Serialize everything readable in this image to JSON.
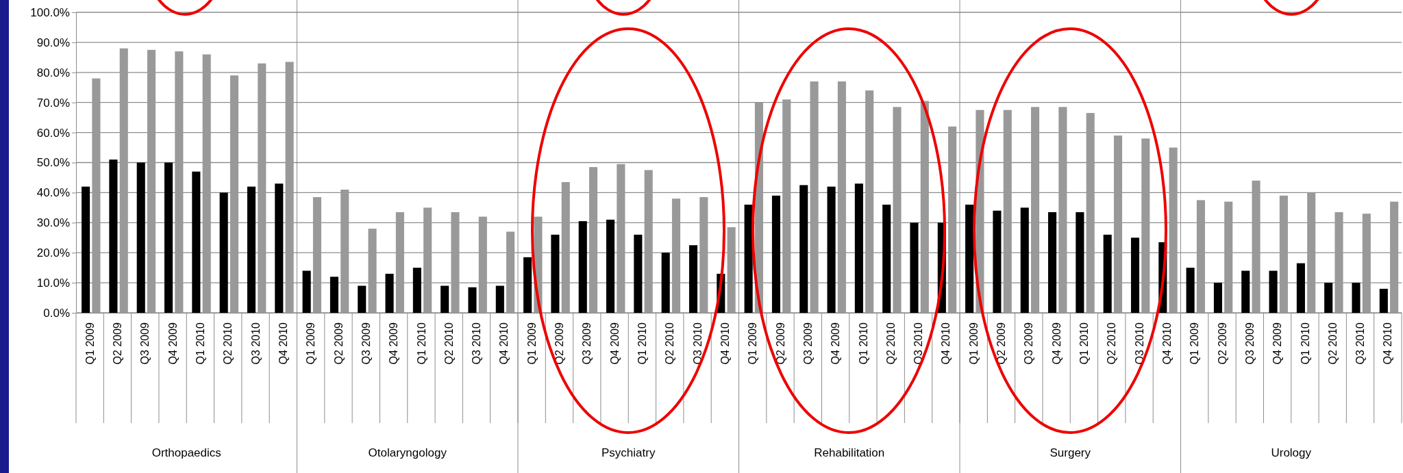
{
  "chart_data": {
    "type": "bar",
    "categories": [
      "Q1 2009",
      "Q2 2009",
      "Q3 2009",
      "Q4 2009",
      "Q1 2010",
      "Q2 2010",
      "Q3 2010",
      "Q4 2010",
      "Q1 2009",
      "Q2 2009",
      "Q3 2009",
      "Q4 2009",
      "Q1 2010",
      "Q2 2010",
      "Q3 2010",
      "Q4 2010",
      "Q1 2009",
      "Q2 2009",
      "Q3 2009",
      "Q4 2009",
      "Q1 2010",
      "Q2 2010",
      "Q3 2010",
      "Q4 2010",
      "Q1 2009",
      "Q2 2009",
      "Q3 2009",
      "Q4 2009",
      "Q1 2010",
      "Q2 2010",
      "Q3 2010",
      "Q4 2010",
      "Q1 2009",
      "Q2 2009",
      "Q3 2009",
      "Q4 2009",
      "Q1 2010",
      "Q2 2010",
      "Q3 2010",
      "Q4 2010",
      "Q1 2009",
      "Q2 2009",
      "Q3 2009",
      "Q4 2009",
      "Q1 2010",
      "Q2 2010",
      "Q3 2010",
      "Q4 2010"
    ],
    "series": [
      {
        "color": "#000000",
        "values": [
          42,
          51,
          50,
          50,
          47,
          40,
          42,
          43,
          14,
          12,
          9,
          13,
          15,
          9,
          8.5,
          9,
          18.5,
          26,
          30.5,
          31,
          26,
          20,
          22.5,
          13,
          36,
          39,
          42.5,
          42,
          43,
          36,
          30,
          30,
          36,
          34,
          35,
          33.5,
          33.5,
          26,
          25,
          23.5,
          15,
          10,
          14,
          14,
          16.5,
          10,
          10,
          8
        ]
      },
      {
        "color": "#999999",
        "values": [
          78,
          88,
          87.5,
          87,
          86,
          79,
          83,
          83.5,
          38.5,
          41,
          28,
          33.5,
          35,
          33.5,
          32,
          27,
          32,
          43.5,
          48.5,
          49.5,
          47.5,
          38,
          38.5,
          28.5,
          70,
          71,
          77,
          77,
          74,
          68.5,
          70.5,
          62,
          67.5,
          67.5,
          68.5,
          68.5,
          66.5,
          59,
          58,
          55,
          37.5,
          37,
          44,
          39,
          40,
          33.5,
          33,
          37
        ]
      }
    ],
    "ylim": [
      0,
      100
    ],
    "yticks": [
      {
        "value": 0,
        "label": "0.0%"
      },
      {
        "value": 10,
        "label": "10.0%"
      },
      {
        "value": 20,
        "label": "20.0%"
      },
      {
        "value": 30,
        "label": "30.0%"
      },
      {
        "value": 40,
        "label": "40.0%"
      },
      {
        "value": 50,
        "label": "50.0%"
      },
      {
        "value": 60,
        "label": "60.0%"
      },
      {
        "value": 70,
        "label": "70.0%"
      },
      {
        "value": 80,
        "label": "80.0%"
      },
      {
        "value": 90,
        "label": "90.0%"
      },
      {
        "value": 100,
        "label": "100.0%"
      }
    ],
    "grid": "y",
    "annotations": [
      "Orthopaedics",
      "Otolaryngology",
      "Psychiatry",
      "Rehabilitation",
      "Surgery",
      "Urology"
    ]
  }
}
